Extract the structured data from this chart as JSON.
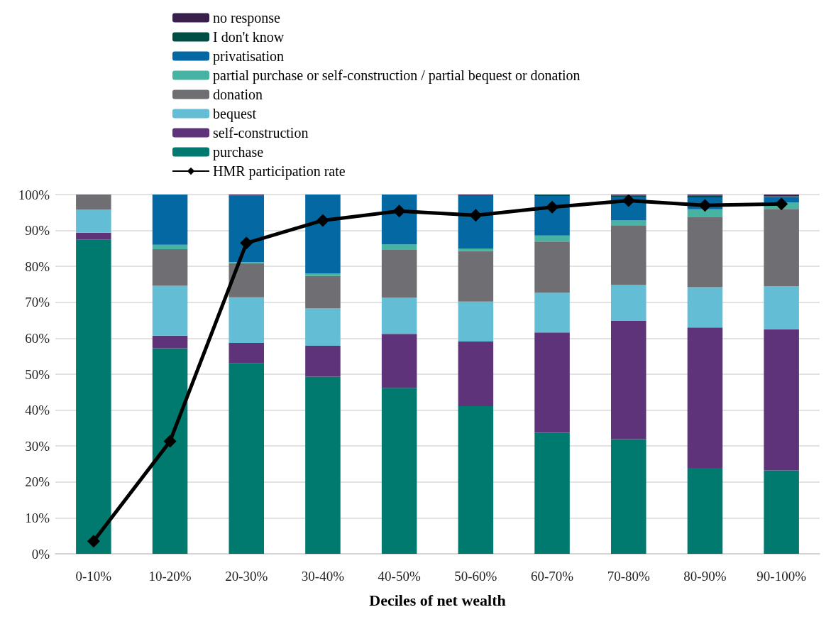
{
  "chart_data": {
    "type": "bar",
    "stacked": true,
    "xlabel": "Deciles of net wealth",
    "categories": [
      "0-10%",
      "10-20%",
      "20-30%",
      "30-40%",
      "40-50%",
      "50-60%",
      "60-70%",
      "70-80%",
      "80-90%",
      "90-100%"
    ],
    "ylim": [
      0,
      100
    ],
    "yticks": [
      {
        "value": 0,
        "label": "0%"
      },
      {
        "value": 10,
        "label": "10%"
      },
      {
        "value": 20,
        "label": "20%"
      },
      {
        "value": 30,
        "label": "30%"
      },
      {
        "value": 40,
        "label": "40%"
      },
      {
        "value": 50,
        "label": "50%"
      },
      {
        "value": 60,
        "label": "60%"
      },
      {
        "value": 70,
        "label": "70%"
      },
      {
        "value": 80,
        "label": "80%"
      },
      {
        "value": 90,
        "label": "90%"
      },
      {
        "value": 100,
        "label": "100%"
      }
    ],
    "grid": "y",
    "legend": "top",
    "series": [
      {
        "name": "purchase",
        "color": "#007a6e",
        "values": [
          87.5,
          57.2,
          53.0,
          49.3,
          46.2,
          41.1,
          33.7,
          31.9,
          23.9,
          23.2
        ]
      },
      {
        "name": "self-construction",
        "color": "#5e3379",
        "values": [
          1.9,
          3.5,
          5.7,
          8.6,
          15.0,
          18.0,
          27.9,
          32.9,
          39.1,
          39.3
        ]
      },
      {
        "name": "bequest",
        "color": "#63bdd4",
        "values": [
          6.4,
          13.9,
          12.7,
          10.4,
          10.1,
          11.1,
          11.1,
          10.0,
          11.2,
          12.0
        ]
      },
      {
        "name": "donation",
        "color": "#6f6e73",
        "values": [
          4.2,
          10.2,
          9.5,
          9.0,
          13.3,
          14.1,
          14.2,
          16.5,
          19.6,
          21.5
        ]
      },
      {
        "name": "partial purchase or self-construction / partial bequest or donation",
        "color": "#46b3a3",
        "values": [
          0,
          1.2,
          0.3,
          0.7,
          1.5,
          0.7,
          1.7,
          1.5,
          2.1,
          1.8
        ]
      },
      {
        "name": "privatisation",
        "color": "#0469a3",
        "values": [
          0,
          14.0,
          18.5,
          22.0,
          13.9,
          14.8,
          11.0,
          6.6,
          3.3,
          1.5
        ]
      },
      {
        "name": "I don't know",
        "color": "#004d45",
        "values": [
          0,
          0,
          0,
          0,
          0,
          0,
          0.4,
          0.3,
          0.5,
          0.2
        ]
      },
      {
        "name": "no response",
        "color": "#3a1f4d",
        "values": [
          0,
          0,
          0.3,
          0,
          0,
          0.2,
          0,
          0.3,
          0.3,
          0.5
        ]
      },
      {
        "name": "HMR participation rate",
        "type": "line",
        "color": "#000000",
        "marker": "diamond",
        "values": [
          3.5,
          31.3,
          86.5,
          92.8,
          95.4,
          94.2,
          96.5,
          98.3,
          97.0,
          97.4
        ]
      }
    ]
  }
}
